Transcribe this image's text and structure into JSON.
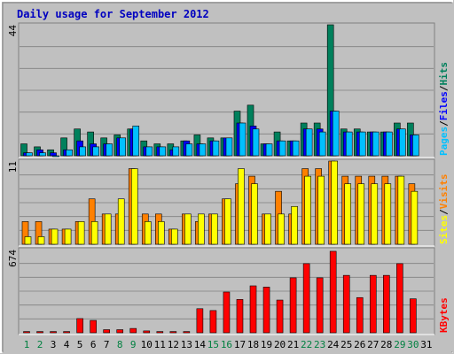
{
  "chart_data": [
    {
      "type": "bar",
      "title": "Daily usage for September 2012",
      "ylim": [
        0,
        44
      ],
      "yticks": [
        44
      ],
      "series": [
        {
          "name": "Hits",
          "color": "#00805c",
          "values": [
            4,
            3,
            2,
            6,
            9,
            8,
            6,
            7,
            9,
            5,
            4,
            4,
            5,
            7,
            6,
            6,
            15,
            17,
            4,
            8,
            5,
            11,
            11,
            44,
            9,
            9,
            8,
            8,
            11,
            11,
            null
          ]
        },
        {
          "name": "Files",
          "color": "#0000ff",
          "values": [
            1,
            2,
            1,
            2,
            5,
            4,
            4,
            6,
            9,
            3,
            3,
            2,
            5,
            4,
            5,
            6,
            11,
            10,
            4,
            5,
            5,
            9,
            9,
            15,
            8,
            8,
            8,
            8,
            9,
            7,
            null
          ]
        },
        {
          "name": "Pages",
          "color": "#00c0ff",
          "values": [
            1,
            1,
            0,
            2,
            3,
            3,
            4,
            6,
            10,
            3,
            3,
            3,
            4,
            4,
            5,
            6,
            11,
            9,
            4,
            5,
            5,
            9,
            8,
            15,
            8,
            8,
            8,
            8,
            9,
            7,
            null
          ]
        }
      ]
    },
    {
      "type": "bar",
      "ylim": [
        0,
        11
      ],
      "yticks": [
        11
      ],
      "series": [
        {
          "name": "Visits",
          "color": "#ff8000",
          "values": [
            3,
            3,
            2,
            2,
            3,
            6,
            4,
            4,
            10,
            4,
            4,
            2,
            4,
            3,
            4,
            6,
            8,
            9,
            4,
            7,
            4,
            10,
            10,
            11,
            9,
            9,
            9,
            9,
            9,
            8,
            null
          ]
        },
        {
          "name": "Sites",
          "color": "#ffff00",
          "values": [
            1,
            1,
            2,
            2,
            3,
            3,
            4,
            6,
            10,
            3,
            3,
            2,
            4,
            4,
            4,
            6,
            10,
            8,
            4,
            4,
            5,
            9,
            9,
            11,
            8,
            8,
            8,
            8,
            9,
            7,
            null
          ]
        }
      ]
    },
    {
      "type": "bar",
      "ylim": [
        0,
        674
      ],
      "yticks": [
        674
      ],
      "separator": "/",
      "categories": [
        "1",
        "2",
        "3",
        "4",
        "5",
        "6",
        "7",
        "8",
        "9",
        "10",
        "11",
        "12",
        "13",
        "14",
        "15",
        "16",
        "17",
        "18",
        "19",
        "20",
        "21",
        "22",
        "23",
        "24",
        "25",
        "26",
        "27",
        "28",
        "29",
        "30",
        "31"
      ],
      "category_colors": [
        "#008040",
        "#008040",
        "#000000",
        "#000000",
        "#000000",
        "#000000",
        "#000000",
        "#008040",
        "#008040",
        "#000000",
        "#000000",
        "#000000",
        "#000000",
        "#000000",
        "#008040",
        "#008040",
        "#000000",
        "#000000",
        "#000000",
        "#000000",
        "#000000",
        "#008040",
        "#008040",
        "#000000",
        "#000000",
        "#000000",
        "#000000",
        "#000000",
        "#008040",
        "#008040",
        "#000000"
      ],
      "series": [
        {
          "name": "KBytes",
          "color": "#ff0000",
          "values": [
            10,
            10,
            10,
            10,
            115,
            100,
            25,
            25,
            35,
            15,
            10,
            10,
            10,
            195,
            180,
            330,
            270,
            380,
            370,
            265,
            445,
            560,
            445,
            660,
            465,
            285,
            465,
            465,
            560,
            275,
            null
          ]
        }
      ]
    }
  ]
}
